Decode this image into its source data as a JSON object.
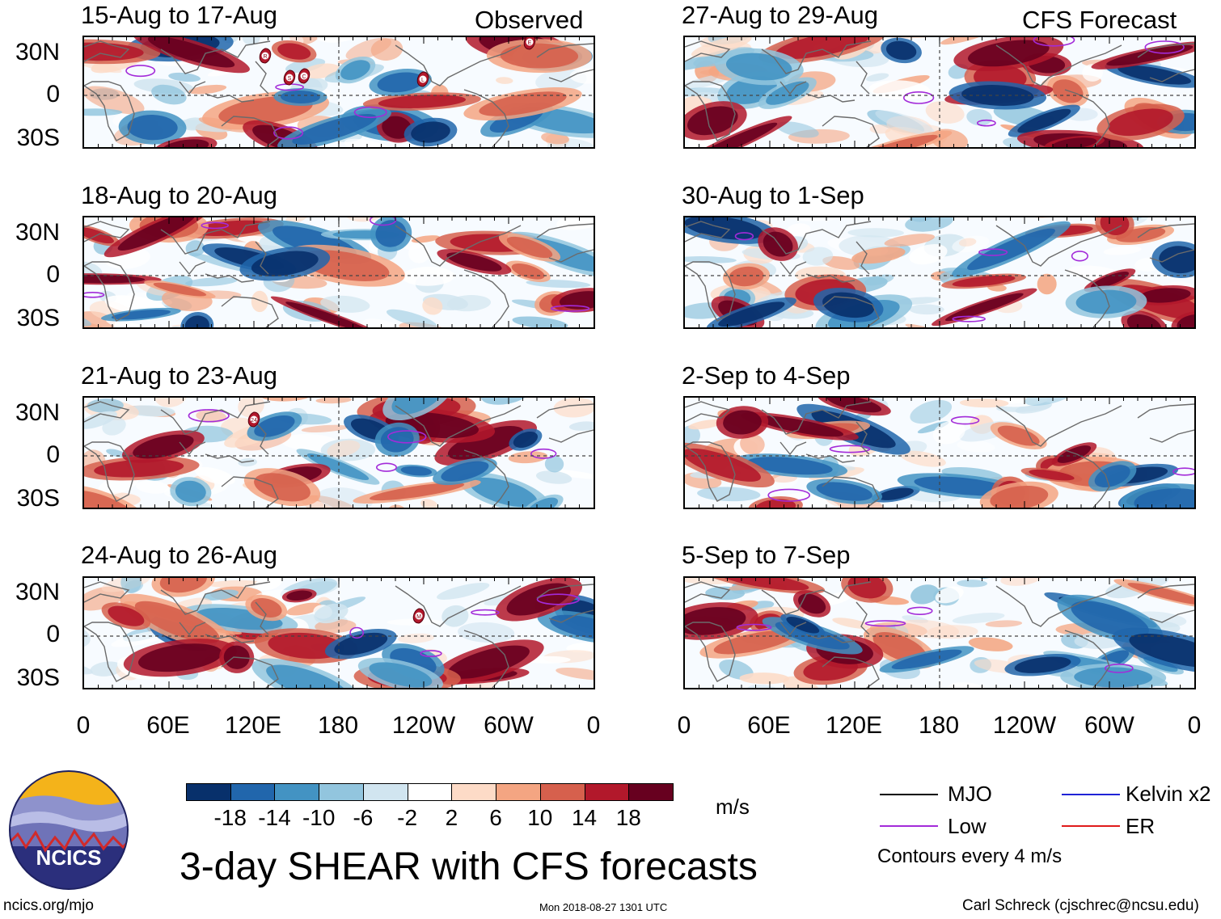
{
  "observed_label": "Observed",
  "forecast_label": "CFS Forecast",
  "panels_left": [
    {
      "title": "15-Aug to 17-Aug"
    },
    {
      "title": "18-Aug to 20-Aug"
    },
    {
      "title": "21-Aug to 23-Aug"
    },
    {
      "title": "24-Aug to 26-Aug"
    }
  ],
  "panels_right": [
    {
      "title": "27-Aug to 29-Aug"
    },
    {
      "title": "30-Aug to 1-Sep"
    },
    {
      "title": "2-Sep to 4-Sep"
    },
    {
      "title": "5-Sep to 7-Sep"
    }
  ],
  "lat_labels": [
    "30N",
    "0",
    "30S"
  ],
  "lon_labels": [
    "0",
    "60E",
    "120E",
    "180",
    "120W",
    "60W",
    "0"
  ],
  "storm_markers": [
    "R",
    "S",
    "C",
    "E",
    "L",
    "24",
    "M"
  ],
  "colorbar": {
    "colors": [
      "#08306b",
      "#2166ac",
      "#4393c3",
      "#92c5de",
      "#d1e5f0",
      "#ffffff",
      "#fddbc7",
      "#f4a582",
      "#d6604d",
      "#b2182b",
      "#67001f"
    ],
    "labels": [
      "-18",
      "-14",
      "-10",
      "-6",
      "-2",
      "2",
      "6",
      "10",
      "14",
      "18"
    ],
    "units": "m/s"
  },
  "main_title": "3-day SHEAR with CFS forecasts",
  "legend": {
    "items": [
      {
        "label": "MJO",
        "color": "#000000"
      },
      {
        "label": "Kelvin x2",
        "color": "#1f23d6"
      },
      {
        "label": "Low",
        "color": "#a32bd9"
      },
      {
        "label": "ER",
        "color": "#e01b1b"
      }
    ],
    "contours_note": "Contours every 4 m/s"
  },
  "logo_text": "NCICS",
  "footer": {
    "url": "ncics.org/mjo",
    "timestamp": "Mon 2018-08-27 1301 UTC",
    "credit": "Carl Schreck (cjschrec@ncsu.edu)"
  }
}
